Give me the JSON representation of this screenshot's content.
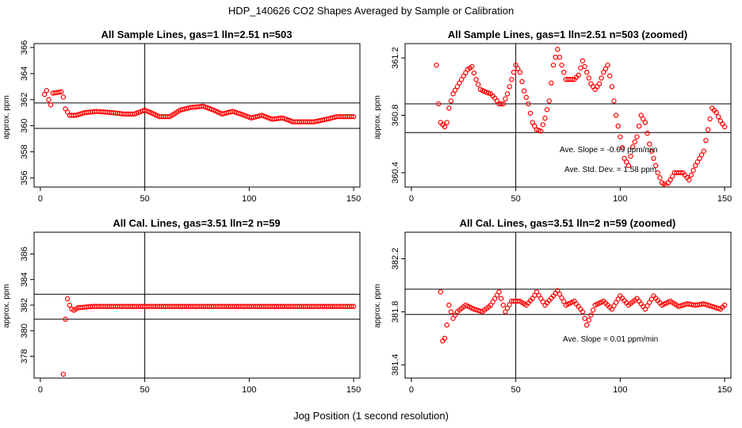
{
  "figure": {
    "title": "HDP_140626  CO2 Shapes Averaged by Sample or Calibration",
    "xlabel": "Jog Position (1 second resolution)"
  },
  "colors": {
    "points": "#ff0000",
    "lines": "#000000",
    "background": "#ffffff"
  },
  "chart_data": [
    {
      "type": "scatter",
      "title": "All Sample Lines, gas=1 lln=2.51 n=503",
      "ylabel": "approx. ppm",
      "xlim": [
        -3,
        153
      ],
      "ylim": [
        355.3,
        366.3
      ],
      "xticks": [
        0,
        50,
        100,
        150
      ],
      "yticks": [
        356,
        358,
        360,
        362,
        364,
        366
      ],
      "hlines": [
        361.75,
        359.8
      ],
      "vline": 50,
      "generator": {
        "x0": 2,
        "x1": 150,
        "knots": [
          [
            2,
            362.4
          ],
          [
            3,
            362.7
          ],
          [
            4,
            362.0
          ],
          [
            5,
            361.6
          ],
          [
            6,
            362.5
          ],
          [
            10,
            362.6
          ],
          [
            11,
            362.2
          ],
          [
            12,
            361.3
          ],
          [
            14,
            360.8
          ],
          [
            17,
            360.8
          ],
          [
            21,
            361.0
          ],
          [
            27,
            361.1
          ],
          [
            35,
            361.0
          ],
          [
            40,
            360.9
          ],
          [
            45,
            360.9
          ],
          [
            50,
            361.2
          ],
          [
            53,
            361.0
          ],
          [
            57,
            360.7
          ],
          [
            62,
            360.7
          ],
          [
            67,
            361.2
          ],
          [
            72,
            361.4
          ],
          [
            78,
            361.5
          ],
          [
            83,
            361.2
          ],
          [
            87,
            360.9
          ],
          [
            92,
            361.1
          ],
          [
            96,
            360.9
          ],
          [
            101,
            360.6
          ],
          [
            106,
            360.8
          ],
          [
            111,
            360.5
          ],
          [
            116,
            360.6
          ],
          [
            121,
            360.3
          ],
          [
            131,
            360.3
          ],
          [
            137,
            360.5
          ],
          [
            142,
            360.7
          ],
          [
            150,
            360.7
          ]
        ]
      },
      "annotations": []
    },
    {
      "type": "scatter",
      "title": "All Sample Lines, gas=1 lln=2.51 n=503 (zoomed)",
      "ylabel": "approx. ppm",
      "xlim": [
        -3,
        153
      ],
      "ylim": [
        360.3,
        361.3
      ],
      "xticks": [
        0,
        50,
        100,
        150
      ],
      "yticks": [
        360.4,
        360.8,
        361.2
      ],
      "hlines": [
        360.88,
        360.68
      ],
      "vline": 50,
      "generator": {
        "x0": 12,
        "x1": 150,
        "knots": [
          [
            12,
            361.15
          ],
          [
            13,
            360.88
          ],
          [
            14,
            360.75
          ],
          [
            16,
            360.72
          ],
          [
            17,
            360.75
          ],
          [
            18,
            360.85
          ],
          [
            20,
            360.95
          ],
          [
            24,
            361.05
          ],
          [
            27,
            361.12
          ],
          [
            29,
            361.14
          ],
          [
            31,
            361.05
          ],
          [
            33,
            360.98
          ],
          [
            36,
            360.96
          ],
          [
            38,
            360.95
          ],
          [
            40,
            360.92
          ],
          [
            42,
            360.88
          ],
          [
            44,
            360.88
          ],
          [
            46,
            360.95
          ],
          [
            48,
            361.05
          ],
          [
            50,
            361.15
          ],
          [
            52,
            361.1
          ],
          [
            54,
            360.97
          ],
          [
            56,
            360.88
          ],
          [
            58,
            360.75
          ],
          [
            60,
            360.7
          ],
          [
            62,
            360.69
          ],
          [
            64,
            360.78
          ],
          [
            66,
            360.9
          ],
          [
            68,
            361.15
          ],
          [
            70,
            361.26
          ],
          [
            72,
            361.15
          ],
          [
            74,
            361.05
          ],
          [
            78,
            361.05
          ],
          [
            80,
            361.08
          ],
          [
            82,
            361.18
          ],
          [
            84,
            361.1
          ],
          [
            86,
            361.02
          ],
          [
            88,
            360.98
          ],
          [
            90,
            361.02
          ],
          [
            92,
            361.1
          ],
          [
            94,
            361.15
          ],
          [
            96,
            361.0
          ],
          [
            98,
            360.8
          ],
          [
            100,
            360.65
          ],
          [
            102,
            360.5
          ],
          [
            104,
            360.45
          ],
          [
            106,
            360.58
          ],
          [
            108,
            360.65
          ],
          [
            110,
            360.8
          ],
          [
            112,
            360.75
          ],
          [
            114,
            360.6
          ],
          [
            116,
            360.5
          ],
          [
            118,
            360.4
          ],
          [
            120,
            360.33
          ],
          [
            122,
            360.31
          ],
          [
            124,
            360.35
          ],
          [
            126,
            360.4
          ],
          [
            130,
            360.4
          ],
          [
            133,
            360.35
          ],
          [
            136,
            360.45
          ],
          [
            138,
            360.5
          ],
          [
            140,
            360.55
          ],
          [
            142,
            360.7
          ],
          [
            144,
            360.85
          ],
          [
            146,
            360.82
          ],
          [
            148,
            360.76
          ],
          [
            150,
            360.72
          ]
        ]
      },
      "annotations": [
        "Ave. Slope =  -0.69  ppm/min",
        "Ave. Std. Dev. =  1.58  ppm"
      ]
    },
    {
      "type": "scatter",
      "title": "All Cal. Lines, gas=3.51 lln=2 n=59",
      "ylabel": "approx. ppm",
      "xlim": [
        -3,
        153
      ],
      "ylim": [
        376.3,
        387.7
      ],
      "xticks": [
        0,
        50,
        100,
        150
      ],
      "yticks": [
        378,
        380,
        382,
        384,
        386
      ],
      "hlines": [
        382.85,
        380.9
      ],
      "vline": 50,
      "generator": {
        "x0": 11,
        "x1": 150,
        "knots": [
          [
            11,
            376.6
          ],
          [
            12,
            380.9
          ],
          [
            13,
            382.5
          ],
          [
            14,
            382.0
          ],
          [
            15,
            381.7
          ],
          [
            16,
            381.6
          ],
          [
            18,
            381.8
          ],
          [
            25,
            381.9
          ],
          [
            150,
            381.9
          ]
        ]
      },
      "annotations": []
    },
    {
      "type": "scatter",
      "title": "All Cal. Lines, gas=3.51 lln=2 n=59 (zoomed)",
      "ylabel": "approx. ppm",
      "xlim": [
        -3,
        153
      ],
      "ylim": [
        381.3,
        382.4
      ],
      "xticks": [
        0,
        50,
        100,
        150
      ],
      "yticks": [
        381.4,
        381.8,
        382.2
      ],
      "hlines": [
        381.97,
        381.78
      ],
      "vline": 50,
      "generator": {
        "x0": 14,
        "x1": 150,
        "knots": [
          [
            14,
            381.95
          ],
          [
            15,
            381.58
          ],
          [
            16,
            381.6
          ],
          [
            17,
            381.7
          ],
          [
            18,
            381.85
          ],
          [
            19,
            381.8
          ],
          [
            20,
            381.75
          ],
          [
            22,
            381.8
          ],
          [
            26,
            381.85
          ],
          [
            30,
            381.82
          ],
          [
            34,
            381.8
          ],
          [
            38,
            381.85
          ],
          [
            40,
            381.9
          ],
          [
            42,
            381.95
          ],
          [
            45,
            381.8
          ],
          [
            48,
            381.88
          ],
          [
            52,
            381.88
          ],
          [
            55,
            381.85
          ],
          [
            58,
            381.9
          ],
          [
            60,
            381.95
          ],
          [
            64,
            381.85
          ],
          [
            68,
            381.92
          ],
          [
            70,
            381.96
          ],
          [
            74,
            381.85
          ],
          [
            78,
            381.88
          ],
          [
            82,
            381.8
          ],
          [
            84,
            381.7
          ],
          [
            88,
            381.85
          ],
          [
            92,
            381.88
          ],
          [
            96,
            381.82
          ],
          [
            100,
            381.92
          ],
          [
            104,
            381.85
          ],
          [
            108,
            381.9
          ],
          [
            112,
            381.82
          ],
          [
            116,
            381.92
          ],
          [
            120,
            381.85
          ],
          [
            124,
            381.88
          ],
          [
            128,
            381.84
          ],
          [
            132,
            381.86
          ],
          [
            136,
            381.85
          ],
          [
            140,
            381.86
          ],
          [
            144,
            381.84
          ],
          [
            148,
            381.82
          ],
          [
            150,
            381.85
          ]
        ]
      },
      "annotations": [
        "Ave. Slope =  0.01  ppm/min"
      ]
    }
  ]
}
